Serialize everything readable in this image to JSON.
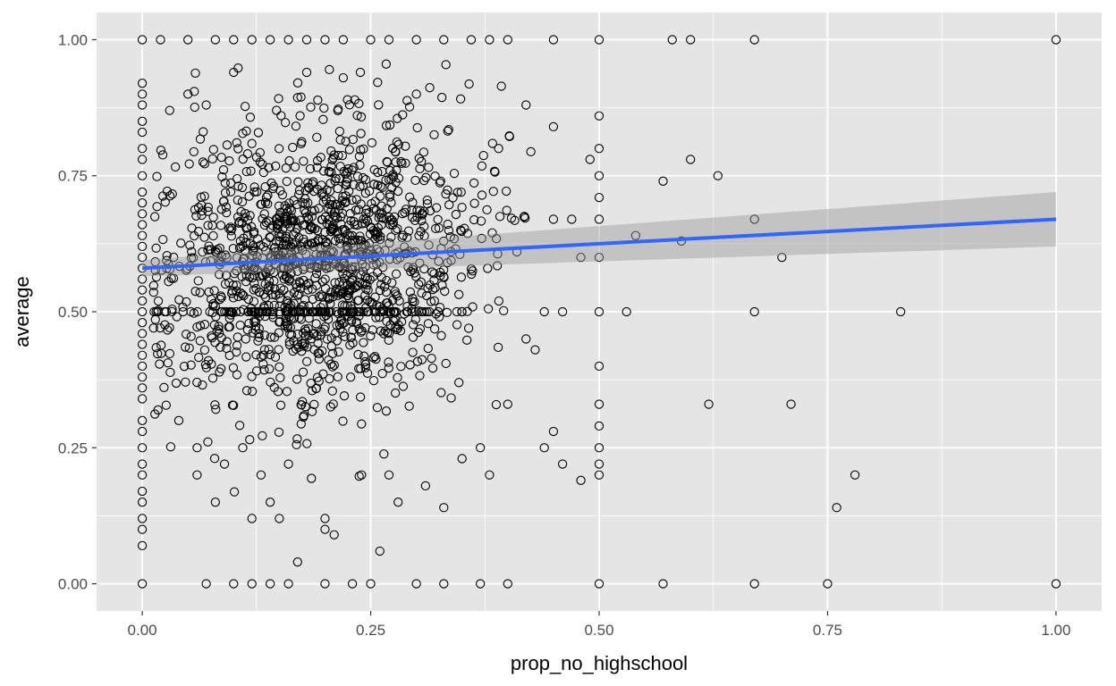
{
  "chart_data": {
    "type": "scatter",
    "title": "",
    "xlabel": "prop_no_highschool",
    "ylabel": "average",
    "xlim": [
      -0.05,
      1.05
    ],
    "ylim": [
      -0.05,
      1.05
    ],
    "x_ticks": [
      0,
      0.25,
      0.5,
      0.75,
      1
    ],
    "y_ticks": [
      0,
      0.25,
      0.5,
      0.75,
      1
    ],
    "x_tick_labels": [
      "0.00",
      "0.25",
      "0.50",
      "0.75",
      "1.00"
    ],
    "y_tick_labels": [
      "0.00",
      "0.25",
      "0.50",
      "0.75",
      "1.00"
    ],
    "grid": true,
    "background": "#e5e5e5",
    "grid_color": "#ffffff",
    "point_style": "open-circle",
    "point_color": "#000000",
    "points": [
      [
        0,
        1
      ],
      [
        0,
        0
      ],
      [
        0,
        0.92
      ],
      [
        0,
        0.9
      ],
      [
        0,
        0.88
      ],
      [
        0,
        0.85
      ],
      [
        0,
        0.83
      ],
      [
        0,
        0.8
      ],
      [
        0,
        0.78
      ],
      [
        0,
        0.75
      ],
      [
        0,
        0.72
      ],
      [
        0,
        0.7
      ],
      [
        0,
        0.68
      ],
      [
        0,
        0.66
      ],
      [
        0,
        0.64
      ],
      [
        0,
        0.62
      ],
      [
        0,
        0.6
      ],
      [
        0,
        0.58
      ],
      [
        0,
        0.56
      ],
      [
        0,
        0.54
      ],
      [
        0,
        0.52
      ],
      [
        0,
        0.5
      ],
      [
        0,
        0.48
      ],
      [
        0,
        0.46
      ],
      [
        0,
        0.44
      ],
      [
        0,
        0.42
      ],
      [
        0,
        0.4
      ],
      [
        0,
        0.38
      ],
      [
        0,
        0.36
      ],
      [
        0,
        0.34
      ],
      [
        0,
        0.3
      ],
      [
        0,
        0.28
      ],
      [
        0,
        0.25
      ],
      [
        0,
        0.22
      ],
      [
        0,
        0.2
      ],
      [
        0,
        0.17
      ],
      [
        0,
        0.15
      ],
      [
        0,
        0.12
      ],
      [
        0,
        0.1
      ],
      [
        0,
        0.07
      ],
      [
        0.02,
        1
      ],
      [
        0.03,
        0.87
      ],
      [
        0.04,
        0.3
      ],
      [
        0.05,
        0.9
      ],
      [
        0.06,
        0.25
      ],
      [
        0.06,
        0.2
      ],
      [
        0.07,
        0.88
      ],
      [
        0.08,
        0.15
      ],
      [
        0.09,
        0.22
      ],
      [
        0.1,
        0.94
      ],
      [
        0.11,
        0.25
      ],
      [
        0.12,
        0.12
      ],
      [
        0.13,
        0.2
      ],
      [
        0.14,
        0.15
      ],
      [
        0.15,
        0.12
      ],
      [
        0.16,
        0.22
      ],
      [
        0.17,
        0.04
      ],
      [
        0.18,
        0.94
      ],
      [
        0.2,
        0.12
      ],
      [
        0.2,
        0.1
      ],
      [
        0.21,
        0.09
      ],
      [
        0.22,
        0.93
      ],
      [
        0.24,
        0.2
      ],
      [
        0.26,
        0.06
      ],
      [
        0.27,
        0.2
      ],
      [
        0.28,
        0.15
      ],
      [
        0.3,
        0.9
      ],
      [
        0.31,
        0.18
      ],
      [
        0.33,
        0.14
      ],
      [
        0.35,
        0.23
      ],
      [
        0.37,
        0.25
      ],
      [
        0.38,
        0.2
      ],
      [
        0.4,
        0.33
      ],
      [
        0.42,
        0.88
      ],
      [
        0.44,
        0.25
      ],
      [
        0.45,
        0.84
      ],
      [
        0.46,
        0.22
      ],
      [
        0.48,
        0.19
      ],
      [
        0.05,
        1
      ],
      [
        0.08,
        1
      ],
      [
        0.1,
        1
      ],
      [
        0.12,
        1
      ],
      [
        0.14,
        1
      ],
      [
        0.16,
        1
      ],
      [
        0.18,
        1
      ],
      [
        0.2,
        1
      ],
      [
        0.22,
        1
      ],
      [
        0.25,
        1
      ],
      [
        0.27,
        1
      ],
      [
        0.3,
        1
      ],
      [
        0.33,
        1
      ],
      [
        0.36,
        1
      ],
      [
        0.38,
        1
      ],
      [
        0.4,
        1
      ],
      [
        0.45,
        1
      ],
      [
        0.5,
        1
      ],
      [
        0.58,
        1
      ],
      [
        0.6,
        1
      ],
      [
        0.67,
        1
      ],
      [
        1,
        1
      ],
      [
        0.07,
        0
      ],
      [
        0.1,
        0
      ],
      [
        0.12,
        0
      ],
      [
        0.14,
        0
      ],
      [
        0.16,
        0
      ],
      [
        0.2,
        0
      ],
      [
        0.23,
        0
      ],
      [
        0.25,
        0
      ],
      [
        0.3,
        0
      ],
      [
        0.33,
        0
      ],
      [
        0.37,
        0
      ],
      [
        0.4,
        0
      ],
      [
        0.5,
        0
      ],
      [
        0.57,
        0
      ],
      [
        0.67,
        0
      ],
      [
        0.75,
        0
      ],
      [
        1,
        0
      ],
      [
        0.42,
        0.45
      ],
      [
        0.45,
        0.67
      ],
      [
        0.47,
        0.67
      ],
      [
        0.48,
        0.6
      ],
      [
        0.49,
        0.78
      ],
      [
        0.5,
        0.86
      ],
      [
        0.5,
        0.8
      ],
      [
        0.5,
        0.75
      ],
      [
        0.5,
        0.71
      ],
      [
        0.5,
        0.67
      ],
      [
        0.5,
        0.6
      ],
      [
        0.5,
        0.5
      ],
      [
        0.5,
        0.4
      ],
      [
        0.5,
        0.33
      ],
      [
        0.5,
        0.29
      ],
      [
        0.5,
        0.25
      ],
      [
        0.5,
        0.22
      ],
      [
        0.5,
        0.2
      ],
      [
        0.53,
        0.5
      ],
      [
        0.54,
        0.64
      ],
      [
        0.57,
        0.74
      ],
      [
        0.59,
        0.63
      ],
      [
        0.6,
        0.78
      ],
      [
        0.62,
        0.33
      ],
      [
        0.63,
        0.75
      ],
      [
        0.67,
        0.67
      ],
      [
        0.67,
        0.5
      ],
      [
        0.7,
        0.6
      ],
      [
        0.71,
        0.33
      ],
      [
        0.76,
        0.14
      ],
      [
        0.78,
        0.2
      ],
      [
        0.83,
        0.5
      ],
      [
        0.46,
        0.5
      ],
      [
        0.43,
        0.43
      ],
      [
        0.45,
        0.28
      ],
      [
        0.44,
        0.5
      ],
      [
        0.41,
        0.61
      ],
      [
        0.39,
        0.8
      ]
    ],
    "trend_line": {
      "method": "lm",
      "color": "#3366ff",
      "x": [
        0,
        1
      ],
      "y": [
        0.58,
        0.67
      ],
      "ci_lower": [
        0.565,
        0.62
      ],
      "ci_upper": [
        0.595,
        0.72
      ]
    }
  }
}
